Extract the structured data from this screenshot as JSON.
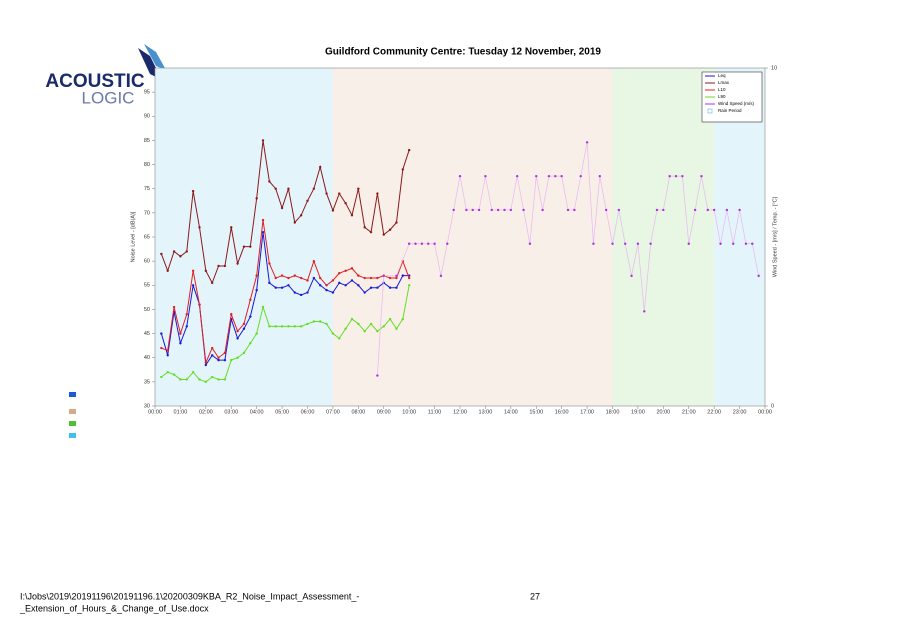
{
  "logo": {
    "line1": "ACOUSTIC",
    "line2": "LOGIC"
  },
  "chart_data": {
    "type": "line",
    "title": "Guildford Community Centre: Tuesday 12 November, 2019",
    "y_label": "Noise Level - [dB(A)]",
    "y2_label": "Wind Speed - [m/s] / Temp. - [°C]",
    "xlim": [
      0,
      24
    ],
    "xticks": [
      {
        "value": 0,
        "label": "00:00"
      },
      {
        "value": 1,
        "label": "01:00"
      },
      {
        "value": 2,
        "label": "02:00"
      },
      {
        "value": 3,
        "label": "03:00"
      },
      {
        "value": 4,
        "label": "04:00"
      },
      {
        "value": 5,
        "label": "05:00"
      },
      {
        "value": 6,
        "label": "06:00"
      },
      {
        "value": 7,
        "label": "07:00"
      },
      {
        "value": 8,
        "label": "08:00"
      },
      {
        "value": 9,
        "label": "09:00"
      },
      {
        "value": 10,
        "label": "10:00"
      },
      {
        "value": 11,
        "label": "11:00"
      },
      {
        "value": 12,
        "label": "12:00"
      },
      {
        "value": 13,
        "label": "13:00"
      },
      {
        "value": 14,
        "label": "14:00"
      },
      {
        "value": 15,
        "label": "15:00"
      },
      {
        "value": 16,
        "label": "16:00"
      },
      {
        "value": 17,
        "label": "17:00"
      },
      {
        "value": 18,
        "label": "18:00"
      },
      {
        "value": 19,
        "label": "19:00"
      },
      {
        "value": 20,
        "label": "20:00"
      },
      {
        "value": 21,
        "label": "21:00"
      },
      {
        "value": 22,
        "label": "22:00"
      },
      {
        "value": 23,
        "label": "23:00"
      },
      {
        "value": 24,
        "label": "00:00"
      }
    ],
    "ylim": [
      30,
      100
    ],
    "yticks": [
      30,
      35,
      40,
      45,
      50,
      55,
      60,
      65,
      70,
      75,
      80,
      85,
      90,
      95
    ],
    "y2lim": [
      0,
      10
    ],
    "y2ticks": [
      0,
      10
    ],
    "periods": [
      {
        "start": 0,
        "end": 7,
        "color": "#e4f4fb"
      },
      {
        "start": 7,
        "end": 18,
        "color": "#f8efe8"
      },
      {
        "start": 18,
        "end": 22,
        "color": "#e8f6e4"
      },
      {
        "start": 22,
        "end": 24,
        "color": "#e4f4fb"
      }
    ],
    "x": [
      0.25,
      0.5,
      0.75,
      1,
      1.25,
      1.5,
      1.75,
      2,
      2.25,
      2.5,
      2.75,
      3,
      3.25,
      3.5,
      3.75,
      4,
      4.25,
      4.5,
      4.75,
      5,
      5.25,
      5.5,
      5.75,
      6,
      6.25,
      6.5,
      6.75,
      7,
      7.25,
      7.5,
      7.75,
      8,
      8.25,
      8.5,
      8.75,
      9,
      9.25,
      9.5,
      9.75,
      10
    ],
    "series": [
      {
        "name": "Leq",
        "color": "#1a1ad6",
        "values": [
          45,
          40.5,
          49.5,
          43,
          46.5,
          55,
          51,
          38.5,
          40.5,
          39.5,
          39.5,
          48,
          44,
          46,
          48.5,
          54,
          66,
          55.5,
          54.5,
          54.5,
          55,
          53.5,
          53,
          53.5,
          56.5,
          55,
          54,
          53.5,
          55.5,
          55,
          56,
          55,
          53.5,
          54.5,
          54.5,
          55.5,
          54.5,
          54.5,
          57,
          57
        ]
      },
      {
        "name": "Lmax",
        "color": "#8b1a1a",
        "values": [
          61.5,
          58,
          62,
          61,
          62,
          74.5,
          67,
          58,
          55.5,
          59,
          59,
          67,
          59.5,
          63,
          63,
          73,
          85,
          76.5,
          75,
          71,
          75,
          68,
          69.5,
          72.5,
          75,
          79.5,
          74,
          70.5,
          74,
          72,
          69.5,
          75,
          67,
          66,
          74,
          65.5,
          66.5,
          68,
          79,
          83
        ]
      },
      {
        "name": "L10",
        "color": "#e02020",
        "values": [
          42,
          41.5,
          50.5,
          45,
          49,
          58,
          51,
          39,
          42,
          40,
          41,
          49,
          45.5,
          47,
          52,
          57,
          68.5,
          59.5,
          56.5,
          57,
          56.5,
          57,
          56.5,
          56,
          60,
          56.5,
          55,
          56,
          57.5,
          58,
          58.5,
          57,
          56.5,
          56.5,
          56.5,
          57,
          56.5,
          56.5,
          60,
          56.5
        ]
      },
      {
        "name": "L90",
        "color": "#66dd22",
        "values": [
          36,
          37,
          36.5,
          35.5,
          35.5,
          37,
          35.5,
          35,
          36,
          35.5,
          35.5,
          39.5,
          40,
          41,
          43,
          45,
          50.5,
          46.5,
          46.5,
          46.5,
          46.5,
          46.5,
          46.5,
          47,
          47.5,
          47.5,
          47,
          45,
          44,
          46,
          48,
          47,
          45.5,
          47,
          45.5,
          46.5,
          48,
          46,
          48,
          55
        ]
      },
      {
        "name": "Wind Speed (m/s)",
        "color": "#b030e0",
        "axis": "y2",
        "x": [
          8.75,
          9,
          9.5,
          10,
          10.25,
          10.5,
          10.75,
          11,
          11.25,
          11.5,
          11.75,
          12,
          12.25,
          12.5,
          12.75,
          13,
          13.25,
          13.5,
          13.75,
          14,
          14.25,
          14.5,
          14.75,
          15,
          15.25,
          15.5,
          15.75,
          16,
          16.25,
          16.5,
          16.75,
          17,
          17.25,
          17.5,
          17.75,
          18,
          18.25,
          18.5,
          18.75,
          19,
          19.25,
          19.5,
          19.75,
          20,
          20.25,
          20.5,
          20.75,
          21,
          21.25,
          21.5,
          21.75,
          22,
          22.25,
          22.5,
          22.75,
          23,
          23.25,
          23.5,
          23.75
        ],
        "values": [
          0.9,
          3.85,
          3.85,
          4.8,
          4.8,
          4.8,
          4.8,
          4.8,
          3.85,
          4.8,
          5.8,
          6.8,
          5.8,
          5.8,
          5.8,
          6.8,
          5.8,
          5.8,
          5.8,
          5.8,
          6.8,
          5.8,
          4.8,
          6.8,
          5.8,
          6.8,
          6.8,
          6.8,
          5.8,
          5.8,
          6.8,
          7.8,
          4.8,
          6.8,
          5.8,
          4.8,
          5.8,
          4.8,
          3.85,
          4.8,
          2.8,
          4.8,
          5.8,
          5.8,
          6.8,
          6.8,
          6.8,
          4.8,
          5.8,
          6.8,
          5.8,
          5.8,
          4.8,
          5.8,
          4.8,
          5.8,
          4.8,
          4.8,
          3.85
        ]
      }
    ],
    "rain_label": "Rain Period"
  },
  "footer": {
    "path_line1": "I:\\Jobs\\2019\\20191196\\20191196.1\\20200309KBA_R2_Noise_Impact_Assessment_-",
    "path_line2": "_Extension_of_Hours_&_Change_of_Use.docx",
    "page": "27"
  }
}
